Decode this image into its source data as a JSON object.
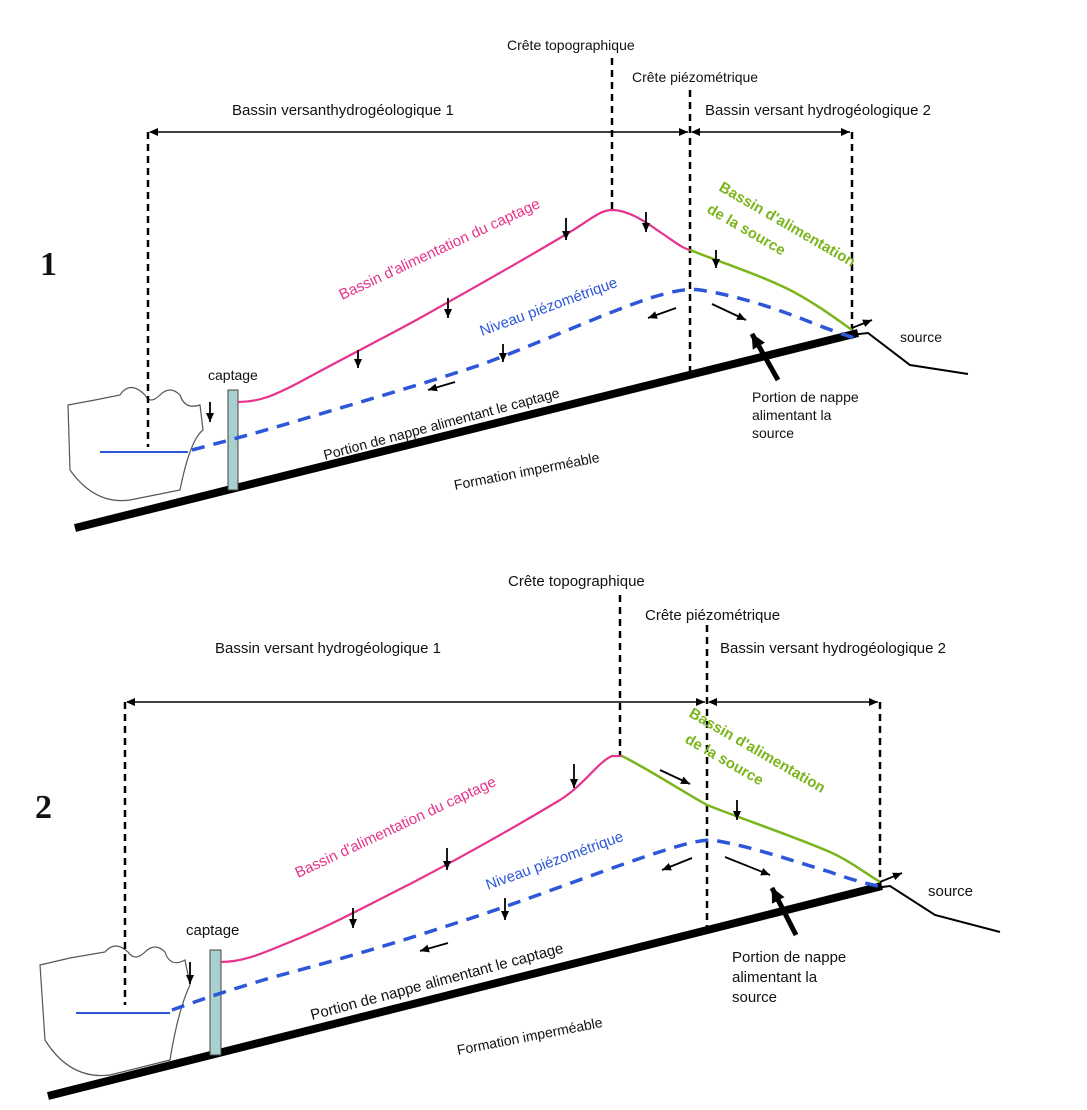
{
  "panels": [
    {
      "number": "1",
      "labels": {
        "crest_topo": "Crête topographique",
        "crest_piezo": "Crête piézométrique",
        "basin1": "Bassin versanthydrogéologique 1",
        "basin2": "Bassin versant hydrogéologique 2",
        "captage_basin": "Bassin d'alimentation du captage",
        "source_basin_line1": "Bassin d'alimentation",
        "source_basin_line2": "de la source",
        "piezo": "Niveau piézométrique",
        "captage": "captage",
        "source": "source",
        "portion_captage": "Portion de nappe alimentant le captage",
        "portion_source_line1": "Portion de nappe",
        "portion_source_line2": "alimentant la",
        "portion_source_line3": "source",
        "impermeable": "Formation imperméable"
      }
    },
    {
      "number": "2",
      "labels": {
        "crest_topo": "Crête topographique",
        "crest_piezo": "Crête piézométrique",
        "basin1": "Bassin versant hydrogéologique 1",
        "basin2": "Bassin versant hydrogéologique 2",
        "captage_basin": "Bassin d'alimentation du captage",
        "source_basin_line1": "Bassin d'alimentation",
        "source_basin_line2": "de la source",
        "piezo": "Niveau piézométrique",
        "captage": "captage",
        "source": "source",
        "portion_captage": "Portion de nappe alimentant le captage",
        "portion_source_line1": "Portion de nappe",
        "portion_source_line2": "alimentant la",
        "portion_source_line3": "source",
        "impermeable": "Formation imperméable"
      }
    }
  ],
  "colors": {
    "captage_basin": "#e6338c",
    "source_basin": "#7ab51d",
    "piezometric": "#2d56d8",
    "well": "#a9cfcf",
    "ground": "#000000"
  }
}
